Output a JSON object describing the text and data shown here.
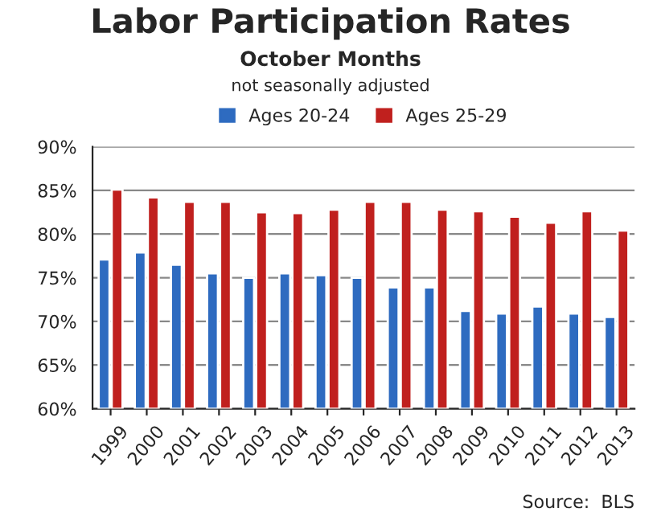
{
  "chart_data": {
    "type": "bar",
    "title": "Labor Participation Rates",
    "subtitle": "October Months\nnot seasonally adjusted",
    "categories": [
      "1999",
      "2000",
      "2001",
      "2002",
      "2003",
      "2004",
      "2005",
      "2006",
      "2007",
      "2008",
      "2009",
      "2010",
      "2011",
      "2012",
      "2013"
    ],
    "series": [
      {
        "name": "Ages 20-24",
        "color": "#2e6bc0",
        "values": [
          77.1,
          77.9,
          76.5,
          75.5,
          75.0,
          75.5,
          75.3,
          75.0,
          73.9,
          73.9,
          71.2,
          70.9,
          71.7,
          70.9,
          70.5
        ]
      },
      {
        "name": "Ages 25-29",
        "color": "#c0201e",
        "values": [
          85.1,
          84.2,
          83.7,
          83.7,
          82.5,
          82.4,
          82.8,
          83.7,
          83.7,
          82.8,
          82.6,
          82.0,
          81.3,
          82.6,
          80.4
        ]
      }
    ],
    "ylim": [
      60,
      90
    ],
    "yticks": [
      {
        "value": 60,
        "label": "60%"
      },
      {
        "value": 65,
        "label": "65%"
      },
      {
        "value": 70,
        "label": "70%"
      },
      {
        "value": 75,
        "label": "75%"
      },
      {
        "value": 80,
        "label": "80%"
      },
      {
        "value": 85,
        "label": "85%"
      },
      {
        "value": 90,
        "label": "90%"
      }
    ],
    "grid": "y",
    "legend": "top",
    "annotations": [
      "Source:  BLS"
    ]
  }
}
